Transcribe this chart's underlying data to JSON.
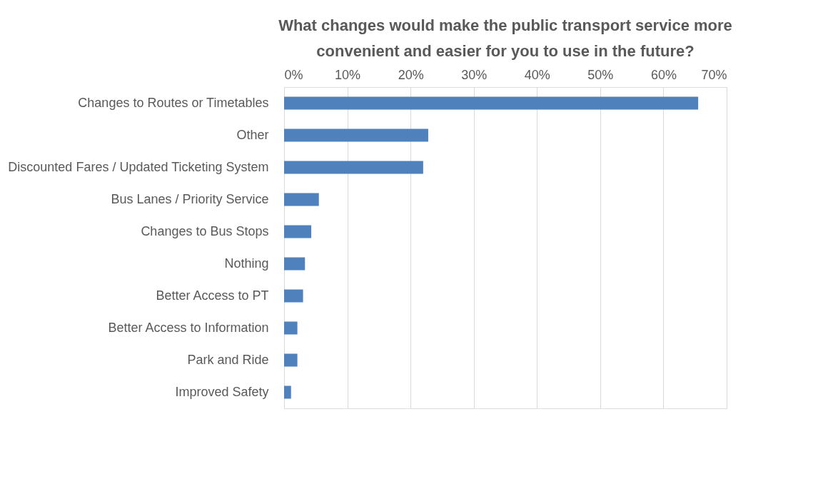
{
  "chart_data": {
    "type": "bar",
    "orientation": "horizontal",
    "title": "What changes would make the public transport service more convenient and easier for you to use in the future?",
    "categories": [
      "Changes to Routes or Timetables",
      "Other",
      "Discounted Fares / Updated Ticketing System",
      "Bus Lanes / Priority Service",
      "Changes to Bus Stops",
      "Nothing",
      "Better Access to PT",
      "Better Access to Information",
      "Park and Ride",
      "Improved Safety"
    ],
    "values": [
      65.5,
      22.8,
      22.0,
      5.5,
      4.3,
      3.3,
      3.0,
      2.1,
      2.1,
      1.1
    ],
    "color": "#4f81bd",
    "xlim": [
      0,
      70
    ],
    "xticks": [
      {
        "value": 0,
        "label": "0%"
      },
      {
        "value": 10,
        "label": "10%"
      },
      {
        "value": 20,
        "label": "20%"
      },
      {
        "value": 30,
        "label": "30%"
      },
      {
        "value": 40,
        "label": "40%"
      },
      {
        "value": 50,
        "label": "50%"
      },
      {
        "value": 60,
        "label": "60%"
      },
      {
        "value": 70,
        "label": "70%"
      }
    ],
    "grid": "x"
  }
}
